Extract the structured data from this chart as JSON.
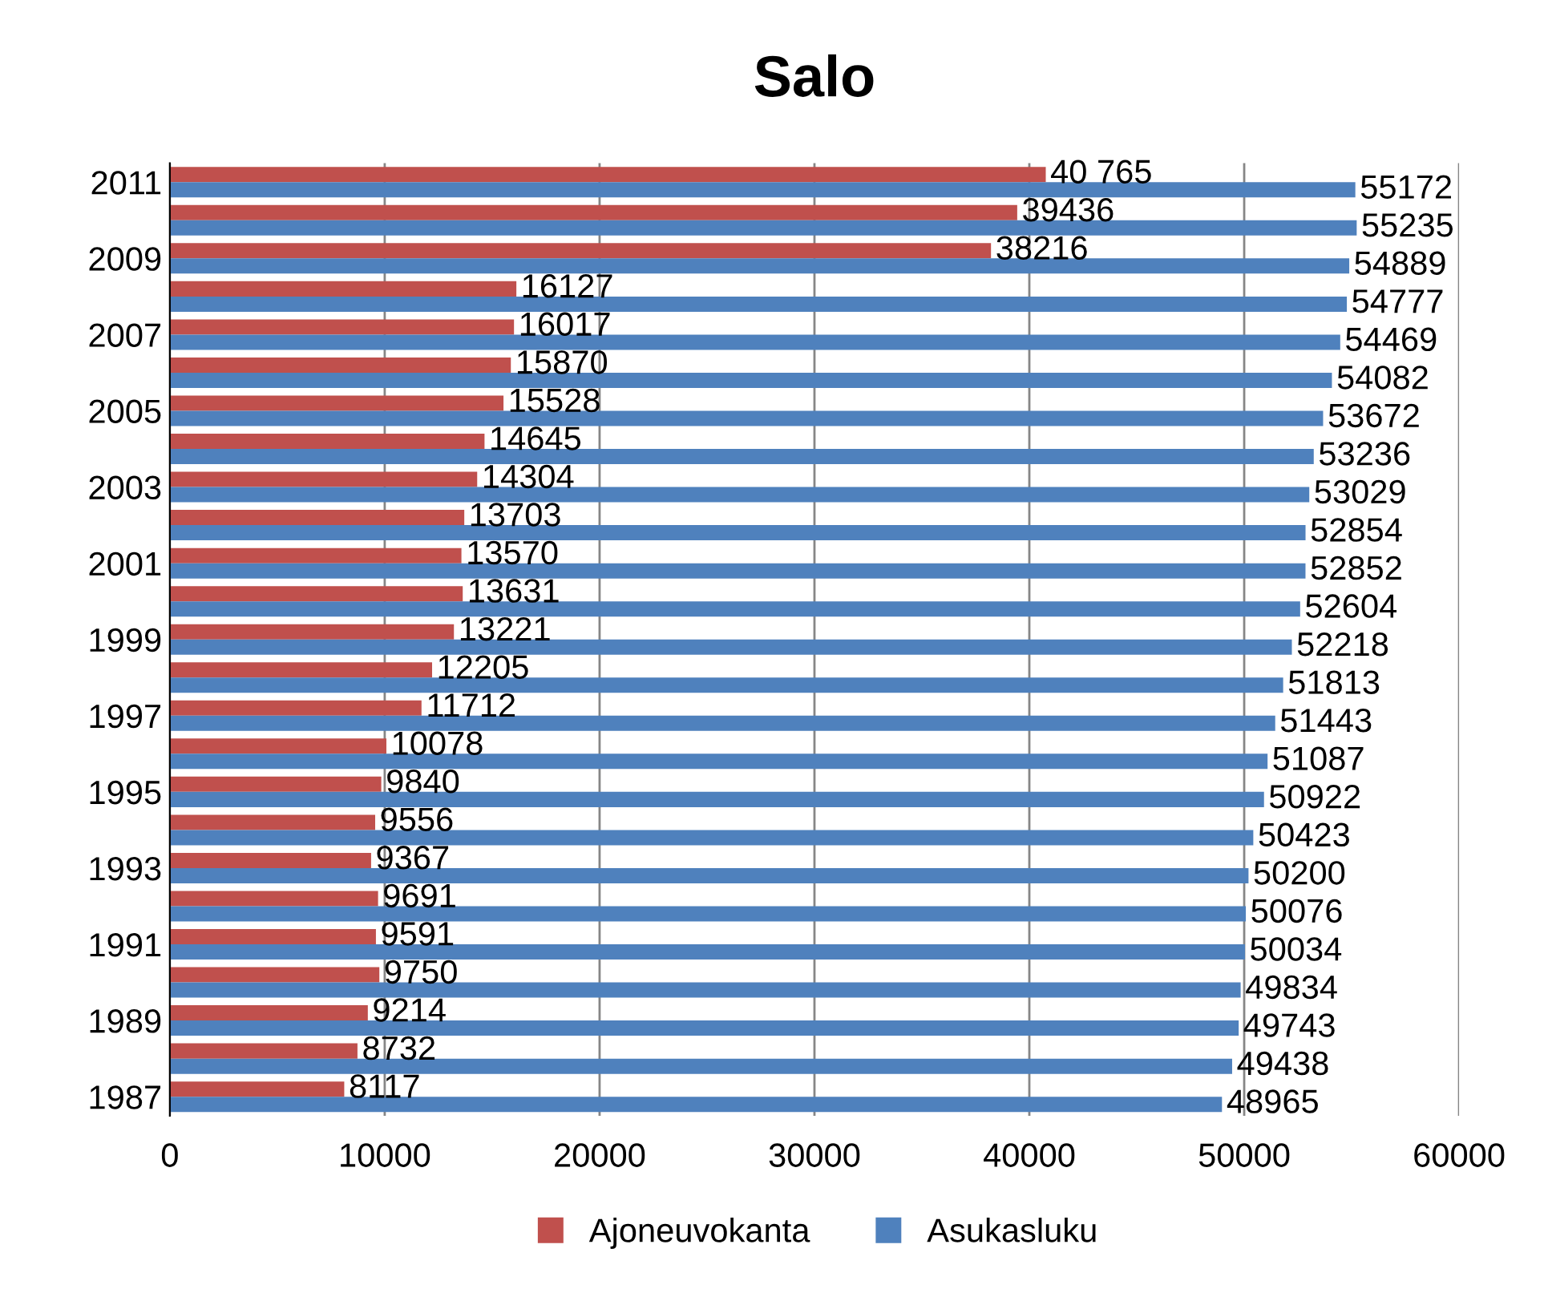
{
  "chart_data": {
    "type": "bar",
    "orientation": "horizontal",
    "title": "Salo",
    "categories": [
      "2011",
      null,
      "2009",
      null,
      "2007",
      null,
      "2005",
      null,
      "2003",
      null,
      "2001",
      null,
      "1999",
      null,
      "1997",
      null,
      "1995",
      null,
      "1993",
      null,
      "1991",
      null,
      "1989",
      null,
      "1987"
    ],
    "series": [
      {
        "name": "Ajoneuvokanta",
        "color": "#c0504d",
        "values": [
          40765,
          39436,
          38216,
          16127,
          16017,
          15870,
          15528,
          14645,
          14304,
          13703,
          13570,
          13631,
          13221,
          12205,
          11712,
          10078,
          9840,
          9556,
          9367,
          9691,
          9591,
          9750,
          9214,
          8732,
          8117
        ],
        "value_labels": [
          "40 765",
          "39436",
          "38216",
          "16127",
          "16017",
          "15870",
          "15528",
          "14645",
          "14304",
          "13703",
          "13570",
          "13631",
          "13221",
          "12205",
          "11712",
          "10078",
          "9840",
          "9556",
          "9367",
          "9691",
          "9591",
          "9750",
          "9214",
          "8732",
          "8117"
        ]
      },
      {
        "name": "Asukasluku",
        "color": "#4f81bd",
        "values": [
          55172,
          55235,
          54889,
          54777,
          54469,
          54082,
          53672,
          53236,
          53029,
          52854,
          52852,
          52604,
          52218,
          51813,
          51443,
          51087,
          50922,
          50423,
          50200,
          50076,
          50034,
          49834,
          49743,
          49438,
          48965
        ],
        "value_labels": [
          "55172",
          "55235",
          "54889",
          "54777",
          "54469",
          "54082",
          "53672",
          "53236",
          "53029",
          "52854",
          "52852",
          "52604",
          "52218",
          "51813",
          "51443",
          "51087",
          "50922",
          "50423",
          "50200",
          "50076",
          "50034",
          "49834",
          "49743",
          "49438",
          "48965"
        ]
      }
    ],
    "xlim": [
      0,
      60000
    ],
    "xticks": [
      0,
      10000,
      20000,
      30000,
      40000,
      50000,
      60000
    ],
    "grid": "x",
    "legend": "bottom"
  }
}
